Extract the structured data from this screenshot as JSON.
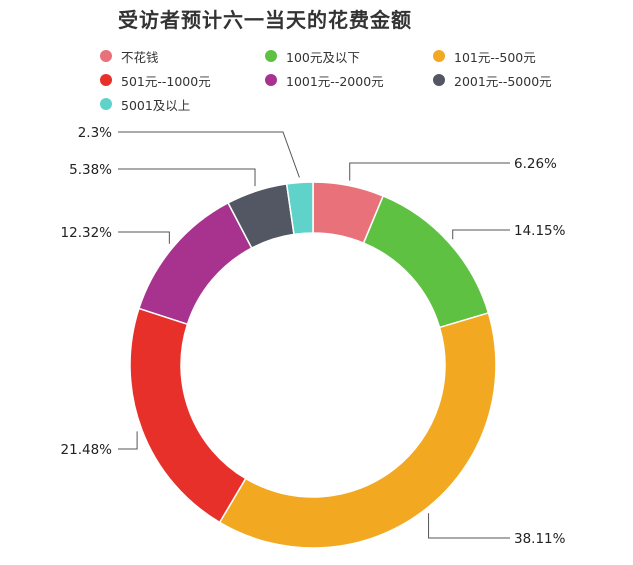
{
  "chart_data": {
    "type": "pie",
    "title": "受访者预计六一当天的花费金额",
    "legend_position": "top",
    "categories": [
      "不花钱",
      "100元及以下",
      "101元--500元",
      "501元--1000元",
      "1001元--2000元",
      "2001元--5000元",
      "5001及以上"
    ],
    "values": [
      6.26,
      14.15,
      38.11,
      21.48,
      12.32,
      5.38,
      2.3
    ],
    "data_labels": [
      "6.26%",
      "14.15%",
      "38.11%",
      "21.48%",
      "12.32%",
      "5.38%",
      "2.3%"
    ],
    "colors": [
      "#e8717a",
      "#5fc142",
      "#f2a921",
      "#e8302a",
      "#a8338e",
      "#525763",
      "#5fd3c9"
    ],
    "donut": true
  }
}
